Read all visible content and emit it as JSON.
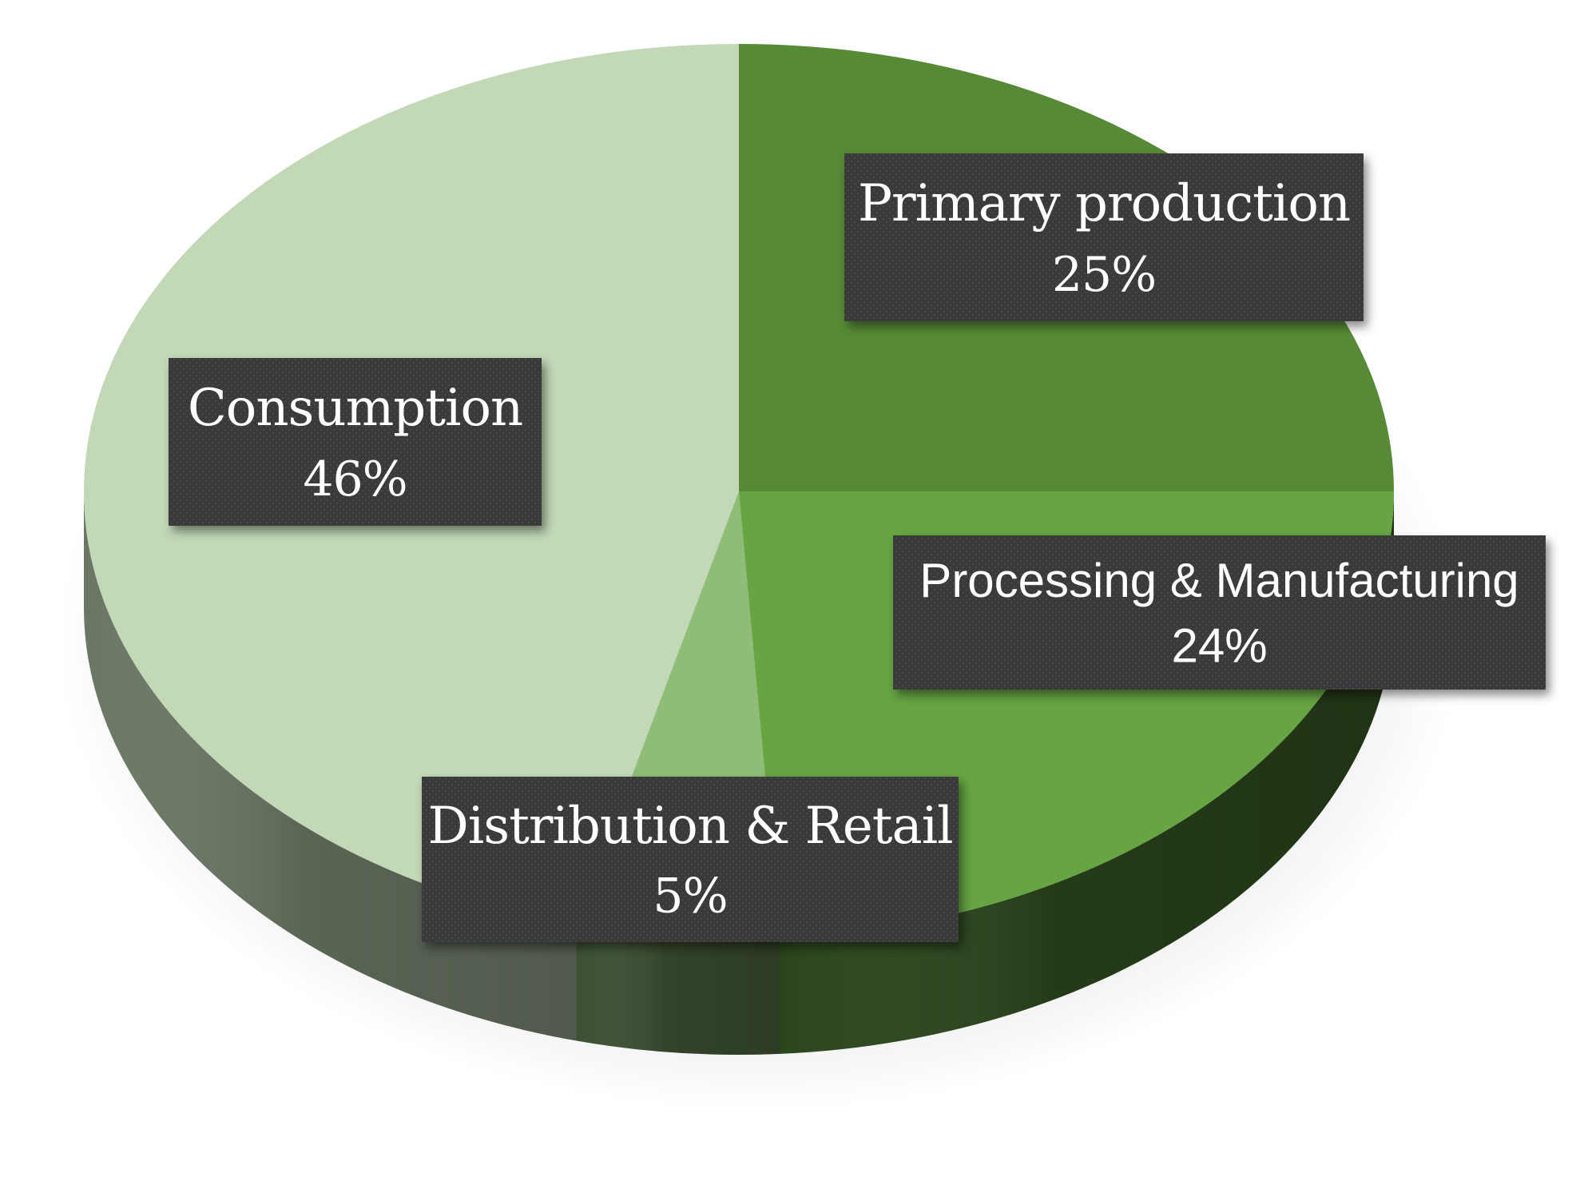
{
  "chart_data": {
    "type": "pie",
    "title": "",
    "series": [
      {
        "slices": [
          {
            "label": "Primary production",
            "value": 25,
            "value_label": "25%",
            "color": "#568a36"
          },
          {
            "label": "Processing & Manufacturing",
            "value": 24,
            "value_label": "24%",
            "color": "#67a543"
          },
          {
            "label": "Distribution & Retail",
            "value": 5,
            "value_label": "5%",
            "color": "#8fbd77"
          },
          {
            "label": "Consumption",
            "value": 46,
            "value_label": "46%",
            "color": "#c2d8b7"
          }
        ]
      }
    ],
    "legend": "none",
    "style": "3d",
    "label_box_color": "#3b3b3b"
  }
}
